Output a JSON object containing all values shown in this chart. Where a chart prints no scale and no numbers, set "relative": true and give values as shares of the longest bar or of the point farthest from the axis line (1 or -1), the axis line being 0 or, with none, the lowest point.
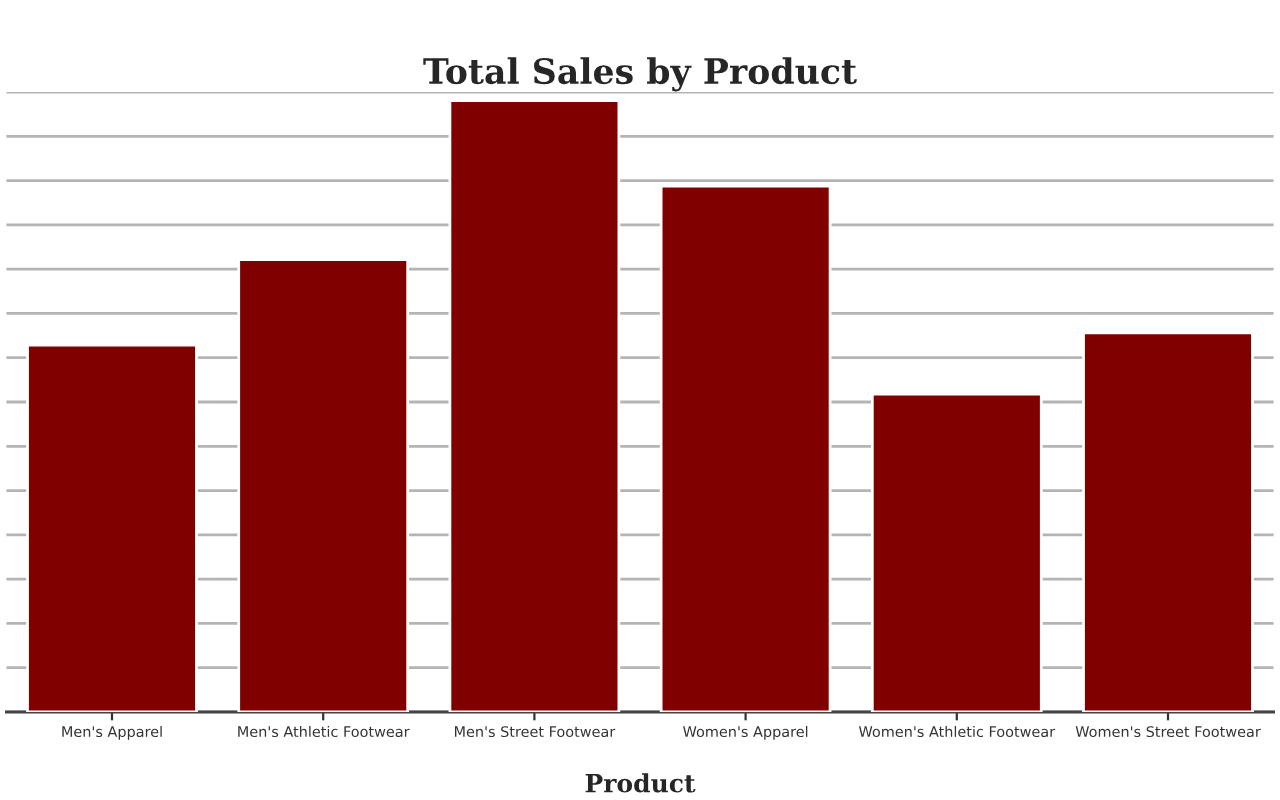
{
  "chart_data": {
    "type": "bar",
    "title": "Total Sales by Product",
    "xlabel": "Product",
    "categories": [
      "Men's Apparel",
      "Men's Athletic Footwear",
      "Men's Street Footwear",
      "Women's Apparel",
      "Women's Athletic Footwear",
      "Women's Street Footwear"
    ],
    "values": [
      0.6,
      0.74,
      1,
      0.86,
      0.52,
      0.62
    ],
    "color": "#800000",
    "relative": true,
    "grid": "y",
    "tick_labels": "x"
  }
}
